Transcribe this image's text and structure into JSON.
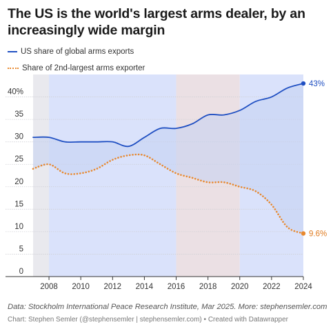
{
  "chart_data": {
    "type": "line",
    "title": "The US is the world's largest arms dealer, by an increasingly wide margin",
    "xlabel": "",
    "ylabel": "",
    "xlim": [
      2007,
      2024
    ],
    "ylim": [
      0,
      45
    ],
    "x_ticks": [
      2008,
      2010,
      2012,
      2014,
      2016,
      2018,
      2020,
      2022,
      2024
    ],
    "y_ticks": [
      0,
      5,
      10,
      15,
      20,
      25,
      30,
      35,
      40
    ],
    "y_tick_labels": [
      "0",
      "5",
      "10",
      "15",
      "20",
      "25",
      "30",
      "35",
      "40%"
    ],
    "grid": "horizontal",
    "legend_position": "top-left",
    "series": [
      {
        "name": "US share of global arms exports",
        "color": "#1f4fc2",
        "style": "solid",
        "end_label": "43%",
        "x": [
          2007,
          2008,
          2009,
          2010,
          2011,
          2012,
          2013,
          2014,
          2015,
          2016,
          2017,
          2018,
          2019,
          2020,
          2021,
          2022,
          2023,
          2024
        ],
        "values": [
          31,
          31,
          30,
          30,
          30,
          30,
          29,
          31,
          33,
          33,
          34,
          36,
          36,
          37,
          39,
          40,
          42,
          43
        ]
      },
      {
        "name": "Share of 2nd-largest arms exporter",
        "color": "#e8892f",
        "style": "dotted",
        "end_label": "9.6%",
        "x": [
          2007,
          2008,
          2009,
          2010,
          2011,
          2012,
          2013,
          2014,
          2015,
          2016,
          2017,
          2018,
          2019,
          2020,
          2021,
          2022,
          2023,
          2024
        ],
        "values": [
          24,
          25,
          23,
          23,
          24,
          26,
          27,
          27,
          25,
          23,
          22,
          21,
          21,
          20,
          19,
          16,
          11,
          9.6
        ]
      }
    ],
    "shaded_periods": [
      {
        "from": 2007,
        "to": 2008,
        "color": "#e9e9ee"
      },
      {
        "from": 2008,
        "to": 2016,
        "color": "#dae2fb"
      },
      {
        "from": 2016,
        "to": 2020,
        "color": "#ebe0e4"
      },
      {
        "from": 2020,
        "to": 2024,
        "color": "#dae2fb"
      }
    ],
    "fill_between_color": "#c5d1f3"
  },
  "footer": {
    "source": "Data: Stockholm International Peace Research Institute, Mar 2025. More: stephensemler.com",
    "credit": "Chart: Stephen Semler (@stephensemler | stephensemler.com) • Created with Datawrapper"
  }
}
